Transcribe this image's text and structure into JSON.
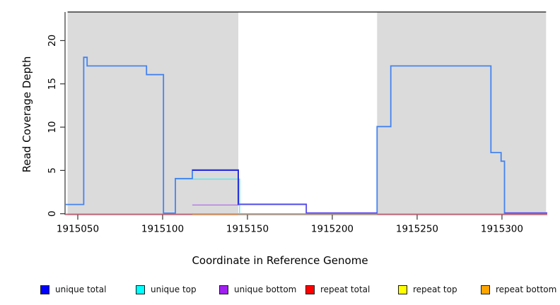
{
  "chart_data": {
    "type": "line",
    "subtype": "step-read-coverage",
    "title": "",
    "xlabel": "Coordinate in Reference Genome",
    "ylabel": "Read Coverage Depth",
    "grid": false,
    "legend_position": "bottom",
    "x_ticks": [
      1915050,
      1915100,
      1915150,
      1915200,
      1915250,
      1915300
    ],
    "y_ticks": [
      0,
      5,
      10,
      15,
      20
    ],
    "x_range": [
      1915042.5,
      1915326.7
    ],
    "y_range": [
      0,
      23.3
    ],
    "shaded_regions": [
      {
        "name": "left-repeat-masked-region",
        "from": 1915044,
        "to": 1915144.6,
        "color": "#DBDBDB"
      },
      {
        "name": "right-repeat-masked-region",
        "from": 1915226.4,
        "to": 1915326.0,
        "color": "#DBDBDB"
      }
    ],
    "series": [
      {
        "name": "repeat total",
        "color": "#DE4060",
        "width": 1.2,
        "dy": 0.5,
        "points": [
          [
            1915042.5,
            0
          ],
          [
            1915326.7,
            0
          ]
        ]
      },
      {
        "name": "top-strand overlap at zero",
        "color": "#7CC87F",
        "width": 1.3,
        "dy": 0,
        "points": [
          [
            1915144.6,
            0
          ],
          [
            1915226.4,
            0
          ]
        ]
      },
      {
        "name": "repeat bottom",
        "color": "#FFA010",
        "width": 1.5,
        "dy": 0,
        "points": [
          [
            1915117.5,
            0
          ],
          [
            1915144.6,
            0
          ]
        ]
      },
      {
        "name": "unique top",
        "color": "#55E6EE",
        "width": 1.3,
        "dy": 0,
        "points": [
          [
            1915107.5,
            4
          ],
          [
            1915145.4,
            4
          ],
          [
            1915145.4,
            0
          ]
        ]
      },
      {
        "name": "unique bottom",
        "color": "#B070E8",
        "width": 1.3,
        "dy": 0,
        "points": [
          [
            1915117.5,
            1
          ],
          [
            1915145.0,
            1
          ]
        ]
      },
      {
        "name": "total coverage",
        "color": "#4483F0",
        "width": 1.8,
        "dy": -0.8,
        "points": [
          [
            1915042.5,
            1
          ],
          [
            1915053.5,
            1
          ],
          [
            1915053.5,
            18
          ],
          [
            1915055.5,
            18
          ],
          [
            1915055.5,
            17
          ],
          [
            1915090.5,
            17
          ],
          [
            1915090.5,
            16
          ],
          [
            1915100.5,
            16
          ],
          [
            1915100.5,
            0
          ],
          [
            1915107.5,
            0
          ],
          [
            1915107.5,
            4
          ],
          [
            1915117.5,
            4
          ],
          [
            1915117.5,
            5
          ],
          [
            1915144.6,
            5
          ],
          [
            1915144.6,
            1
          ],
          [
            1915184.7,
            1
          ],
          [
            1915184.7,
            0
          ],
          [
            1915226.4,
            0
          ],
          [
            1915226.4,
            10
          ],
          [
            1915234.5,
            10
          ],
          [
            1915234.5,
            17
          ],
          [
            1915293.5,
            17
          ],
          [
            1915293.5,
            7
          ],
          [
            1915299.5,
            7
          ],
          [
            1915299.5,
            6
          ],
          [
            1915301.5,
            6
          ],
          [
            1915301.5,
            0
          ],
          [
            1915326.7,
            0
          ]
        ]
      },
      {
        "name": "unique total",
        "color": "#2222DD",
        "width": 1.8,
        "dy": -0.3,
        "points": [
          [
            1915117.5,
            5
          ],
          [
            1915144.6,
            5
          ],
          [
            1915144.6,
            1
          ]
        ]
      },
      {
        "name": "unique total + unique bottom overlap",
        "color": "#5A48E8",
        "width": 1.6,
        "dy": -1.2,
        "points": [
          [
            1915144.6,
            1
          ],
          [
            1915184.7,
            1
          ],
          [
            1915184.7,
            0
          ],
          [
            1915226.4,
            0
          ]
        ]
      },
      {
        "name": "unique total + unique bottom overlap right",
        "color": "#5A48E8",
        "width": 1.6,
        "dy": -1.2,
        "points": [
          [
            1915301.5,
            0
          ],
          [
            1915326.7,
            0
          ]
        ]
      }
    ],
    "legend": [
      {
        "label": "unique total",
        "color": "#0000FF"
      },
      {
        "label": "unique top",
        "color": "#00FFFF"
      },
      {
        "label": "unique bottom",
        "color": "#A020F0"
      },
      {
        "label": "repeat total",
        "color": "#FF0000"
      },
      {
        "label": "repeat top",
        "color": "#FFFF00"
      },
      {
        "label": "repeat bottom",
        "color": "#FFA500"
      }
    ]
  }
}
